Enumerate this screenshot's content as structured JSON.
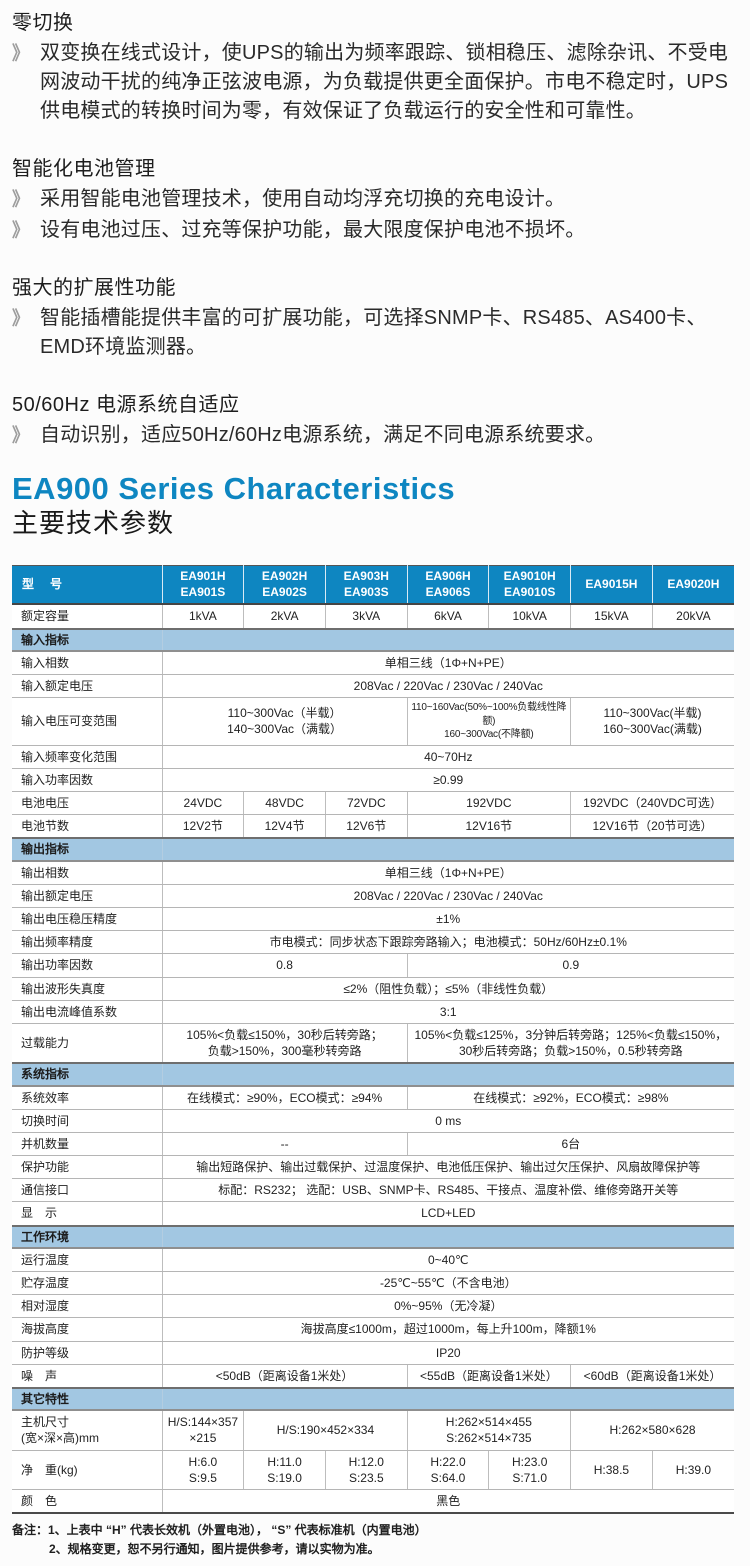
{
  "colors": {
    "header_blue": "#0e86c1",
    "section_blue": "#a2c7e2",
    "title_blue": "#0e86c1",
    "bullet_gray": "#9d9d9d"
  },
  "features": [
    {
      "title": "零切换",
      "items": [
        "双变换在线式设计，使UPS的输出为频率跟踪、锁相稳压、滤除杂讯、不受电网波动干扰的纯净正弦波电源，为负载提供更全面保护。市电不稳定时，UPS供电模式的转换时间为零，有效保证了负载运行的安全性和可靠性。"
      ]
    },
    {
      "title": "智能化电池管理",
      "items": [
        "采用智能电池管理技术，使用自动均浮充切换的充电设计。",
        "设有电池过压、过充等保护功能，最大限度保护电池不损坏。"
      ]
    },
    {
      "title": "强大的扩展性功能",
      "items": [
        "智能插槽能提供丰富的可扩展功能，可选择SNMP卡、RS485、AS400卡、EMD环境监测器。"
      ]
    },
    {
      "title": "50/60Hz 电源系统自适应",
      "items": [
        "自动识别，适应50Hz/60Hz电源系统，满足不同电源系统要求。"
      ]
    }
  ],
  "bullet_glyph": "》",
  "heading": {
    "en": "EA900 Series Characteristics",
    "zh": "主要技术参数"
  },
  "table": {
    "header": {
      "label": "型　号",
      "models": [
        "EA901H\nEA901S",
        "EA902H\nEA902S",
        "EA903H\nEA903S",
        "EA906H\nEA906S",
        "EA9010H\nEA9010S",
        "EA9015H",
        "EA9020H"
      ]
    },
    "rows": [
      {
        "label": "额定容量",
        "cells": [
          {
            "text": "1kVA"
          },
          {
            "text": "2kVA"
          },
          {
            "text": "3kVA"
          },
          {
            "text": "6kVA"
          },
          {
            "text": "10kVA"
          },
          {
            "text": "15kVA"
          },
          {
            "text": "20kVA"
          }
        ]
      },
      {
        "section": "输入指标"
      },
      {
        "label": "输入相数",
        "cells": [
          {
            "text": "单相三线（1Φ+N+PE）",
            "span": 7
          }
        ]
      },
      {
        "label": "输入额定电压",
        "cells": [
          {
            "text": "208Vac / 220Vac / 230Vac / 240Vac",
            "span": 7
          }
        ]
      },
      {
        "label": "输入电压可变范围",
        "cells": [
          {
            "text": "110~300Vac（半载）\n140~300Vac（满载）",
            "span": 3
          },
          {
            "text": "110~160Vac(50%~100%负载线性降额)\n160~300Vac(不降额)",
            "span": 2,
            "small": true
          },
          {
            "text": "110~300Vac(半载)\n160~300Vac(满载)",
            "span": 2
          }
        ]
      },
      {
        "label": "输入频率变化范围",
        "cells": [
          {
            "text": "40~70Hz",
            "span": 7
          }
        ]
      },
      {
        "label": "输入功率因数",
        "cells": [
          {
            "text": "≥0.99",
            "span": 7
          }
        ]
      },
      {
        "label": "电池电压",
        "cells": [
          {
            "text": "24VDC"
          },
          {
            "text": "48VDC"
          },
          {
            "text": "72VDC"
          },
          {
            "text": "192VDC",
            "span": 2
          },
          {
            "text": "192VDC（240VDC可选）",
            "span": 2
          }
        ]
      },
      {
        "label": "电池节数",
        "cells": [
          {
            "text": "12V2节"
          },
          {
            "text": "12V4节"
          },
          {
            "text": "12V6节"
          },
          {
            "text": "12V16节",
            "span": 2
          },
          {
            "text": "12V16节（20节可选）",
            "span": 2
          }
        ]
      },
      {
        "section": "输出指标"
      },
      {
        "label": "输出相数",
        "cells": [
          {
            "text": "单相三线（1Φ+N+PE）",
            "span": 7
          }
        ]
      },
      {
        "label": "输出额定电压",
        "cells": [
          {
            "text": "208Vac / 220Vac / 230Vac / 240Vac",
            "span": 7
          }
        ]
      },
      {
        "label": "输出电压稳压精度",
        "cells": [
          {
            "text": "±1%",
            "span": 7
          }
        ]
      },
      {
        "label": "输出频率精度",
        "cells": [
          {
            "text": "市电模式：同步状态下跟踪旁路输入；电池模式：50Hz/60Hz±0.1%",
            "span": 7
          }
        ]
      },
      {
        "label": "输出功率因数",
        "cells": [
          {
            "text": "0.8",
            "span": 3
          },
          {
            "text": "0.9",
            "span": 4
          }
        ]
      },
      {
        "label": "输出波形失真度",
        "cells": [
          {
            "text": "≤2%（阻性负载）；≤5%（非线性负载）",
            "span": 7
          }
        ]
      },
      {
        "label": "输出电流峰值系数",
        "cells": [
          {
            "text": "3:1",
            "span": 7
          }
        ]
      },
      {
        "label": "过载能力",
        "cells": [
          {
            "text": "105%<负载≤150%，30秒后转旁路；\n负载>150%，300毫秒转旁路",
            "span": 3
          },
          {
            "text": "105%<负载≤125%，3分钟后转旁路；125%<负载≤150%，\n30秒后转旁路；负载>150%，0.5秒转旁路",
            "span": 4
          }
        ]
      },
      {
        "section": "系统指标"
      },
      {
        "label": "系统效率",
        "cells": [
          {
            "text": "在线模式：≥90%，ECO模式：≥94%",
            "span": 3
          },
          {
            "text": "在线模式：≥92%，ECO模式：≥98%",
            "span": 4
          }
        ]
      },
      {
        "label": "切换时间",
        "cells": [
          {
            "text": "0 ms",
            "span": 7
          }
        ]
      },
      {
        "label": "并机数量",
        "cells": [
          {
            "text": "--",
            "span": 3
          },
          {
            "text": "6台",
            "span": 4
          }
        ]
      },
      {
        "label": "保护功能",
        "cells": [
          {
            "text": "输出短路保护、输出过载保护、过温度保护、电池低压保护、输出过欠压保护、风扇故障保护等",
            "span": 7
          }
        ]
      },
      {
        "label": "通信接口",
        "cells": [
          {
            "text": "标配：RS232；  选配：USB、SNMP卡、RS485、干接点、温度补偿、维修旁路开关等",
            "span": 7
          }
        ]
      },
      {
        "label": "显　示",
        "cells": [
          {
            "text": "LCD+LED",
            "span": 7
          }
        ]
      },
      {
        "section": "工作环境"
      },
      {
        "label": "运行温度",
        "cells": [
          {
            "text": "0~40℃",
            "span": 7
          }
        ]
      },
      {
        "label": "贮存温度",
        "cells": [
          {
            "text": "-25℃~55℃（不含电池）",
            "span": 7
          }
        ]
      },
      {
        "label": "相对湿度",
        "cells": [
          {
            "text": "0%~95%（无冷凝）",
            "span": 7
          }
        ]
      },
      {
        "label": "海拔高度",
        "cells": [
          {
            "text": "海拔高度≤1000m，超过1000m，每上升100m，降额1%",
            "span": 7
          }
        ]
      },
      {
        "label": "防护等级",
        "cells": [
          {
            "text": "IP20",
            "span": 7
          }
        ]
      },
      {
        "label": "噪　声",
        "cells": [
          {
            "text": "<50dB（距离设备1米处）",
            "span": 3
          },
          {
            "text": "<55dB（距离设备1米处）",
            "span": 2
          },
          {
            "text": "<60dB（距离设备1米处）",
            "span": 2
          }
        ]
      },
      {
        "section": "其它特性"
      },
      {
        "label": "主机尺寸\n(宽×深×高)mm",
        "cells": [
          {
            "text": "H/S:144×357\n×215"
          },
          {
            "text": "H/S:190×452×334",
            "span": 2
          },
          {
            "text": "H:262×514×455\nS:262×514×735",
            "span": 2
          },
          {
            "text": "H:262×580×628",
            "span": 2
          }
        ]
      },
      {
        "label": "净　重(kg)",
        "cells": [
          {
            "text": "H:6.0\nS:9.5"
          },
          {
            "text": "H:11.0\nS:19.0"
          },
          {
            "text": "H:12.0\nS:23.5"
          },
          {
            "text": "H:22.0\nS:64.0"
          },
          {
            "text": "H:23.0\nS:71.0"
          },
          {
            "text": "H:38.5"
          },
          {
            "text": "H:39.0"
          }
        ]
      },
      {
        "label": "颜　色",
        "cells": [
          {
            "text": "黑色",
            "span": 7
          }
        ]
      }
    ]
  },
  "notes": [
    "备注：1、上表中 “H” 代表长效机（外置电池）， “S” 代表标准机（内置电池）",
    "2、规格变更，恕不另行通知，图片提供参考，请以实物为准。"
  ]
}
